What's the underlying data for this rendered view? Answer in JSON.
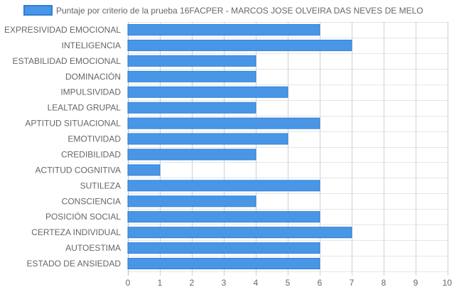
{
  "chart_data": {
    "type": "bar",
    "orientation": "horizontal",
    "categories": [
      "EXPRESIVIDAD EMOCIONAL",
      "INTELIGENCIA",
      "ESTABILIDAD EMOCIONAL",
      "DOMINACIÓN",
      "IMPULSIVIDAD",
      "LEALTAD GRUPAL",
      "APTITUD SITUACIONAL",
      "EMOTIVIDAD",
      "CREDIBILIDAD",
      "ACTITUD COGNITIVA",
      "SUTILEZA",
      "CONSCIENCIA",
      "POSICIÓN SOCIAL",
      "CERTEZA INDIVIDUAL",
      "AUTOESTIMA",
      "ESTADO DE ANSIEDAD"
    ],
    "series": [
      {
        "name": "Puntaje por criterio de la prueba 16FACPER - MARCOS JOSE OLVEIRA DAS NEVES DE MELO",
        "values": [
          6,
          7,
          4,
          4,
          5,
          4,
          6,
          5,
          4,
          1,
          6,
          4,
          6,
          7,
          6,
          6
        ],
        "color": "#4a96e6",
        "border_color": "#2f7fd6"
      }
    ],
    "xlim": [
      0,
      10
    ],
    "x_ticks": [
      "0",
      "1",
      "2",
      "3",
      "4",
      "5",
      "6",
      "7",
      "8",
      "9",
      "10"
    ],
    "grid": true,
    "legend_position": "top"
  }
}
